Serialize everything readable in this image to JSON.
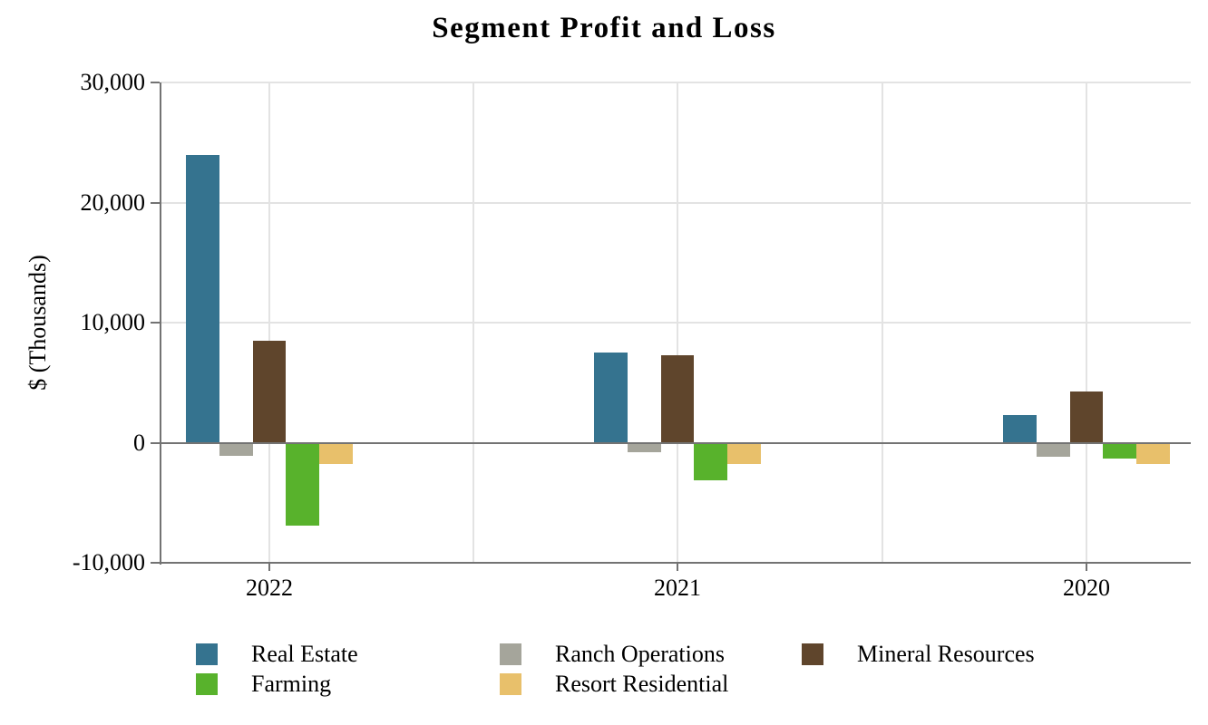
{
  "chart_data": {
    "type": "bar",
    "title": "Segment Profit and Loss",
    "ylabel": "$ (Thousands)",
    "categories": [
      "2022",
      "2021",
      "2020"
    ],
    "series": [
      {
        "name": "Real Estate",
        "color": "#35738F",
        "values": [
          24000,
          7500,
          2300
        ]
      },
      {
        "name": "Ranch Operations",
        "color": "#A5A59B",
        "values": [
          -1100,
          -800,
          -1200
        ]
      },
      {
        "name": "Mineral Resources",
        "color": "#5F452C",
        "values": [
          8500,
          7300,
          4300
        ]
      },
      {
        "name": "Farming",
        "color": "#58B22C",
        "values": [
          -6900,
          -3100,
          -1300
        ]
      },
      {
        "name": "Resort Residential",
        "color": "#E8C06B",
        "values": [
          -1800,
          -1800,
          -1800
        ]
      }
    ],
    "ylim": [
      -10000,
      30000
    ],
    "yticks": [
      {
        "value": 30000,
        "label": "30,000"
      },
      {
        "value": 20000,
        "label": "20,000"
      },
      {
        "value": 10000,
        "label": "10,000"
      },
      {
        "value": 0,
        "label": "0"
      },
      {
        "value": -10000,
        "label": "-10,000"
      }
    ],
    "grid": true,
    "legend_position": "bottom",
    "legend_columns": 3,
    "legend_rows": [
      [
        "Real Estate",
        "Ranch Operations",
        "Mineral Resources"
      ],
      [
        "Farming",
        "Resort Residential"
      ]
    ]
  },
  "colors": {
    "axis": "#737373",
    "gridline": "#E3E3E3",
    "text": "#000000",
    "background": "#FFFFFF"
  }
}
